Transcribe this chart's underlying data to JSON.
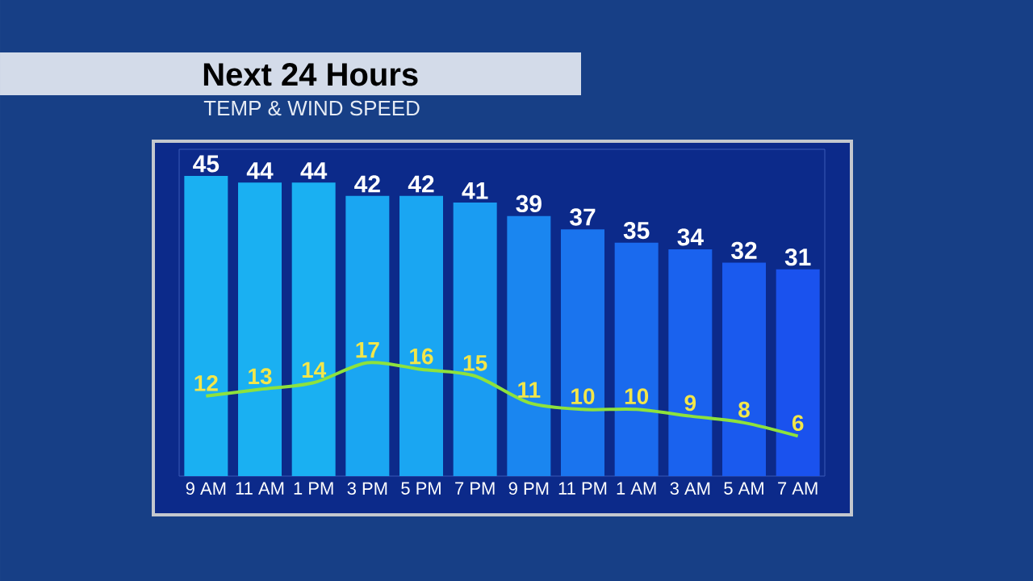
{
  "chart_data": {
    "type": "bar",
    "title": "Next 24 Hours",
    "subtitle": "TEMP & WIND SPEED",
    "categories": [
      "9 AM",
      "11 AM",
      "1 PM",
      "3 PM",
      "5 PM",
      "7 PM",
      "9 PM",
      "11 PM",
      "1 AM",
      "3 AM",
      "5 AM",
      "7 AM"
    ],
    "series": [
      {
        "colors": [
          "#1ab0f2",
          "#1ab0f2",
          "#1ab0f2",
          "#1aa6f2",
          "#1aa6f2",
          "#1a9cf2",
          "#1a86f0",
          "#1a74ee",
          "#1a6aee",
          "#1a62ee",
          "#1a5aee",
          "#1a52ee"
        ],
        "values": [
          45,
          44,
          44,
          42,
          42,
          41,
          39,
          37,
          35,
          34,
          32,
          31
        ]
      },
      {
        "type": "line",
        "color": "#8ee23c",
        "values": [
          12,
          13,
          14,
          17,
          16,
          15,
          11,
          10,
          10,
          9,
          8,
          6
        ]
      }
    ],
    "ylim": [
      0,
      49
    ],
    "data_labels": true,
    "tick_labels": "x"
  }
}
